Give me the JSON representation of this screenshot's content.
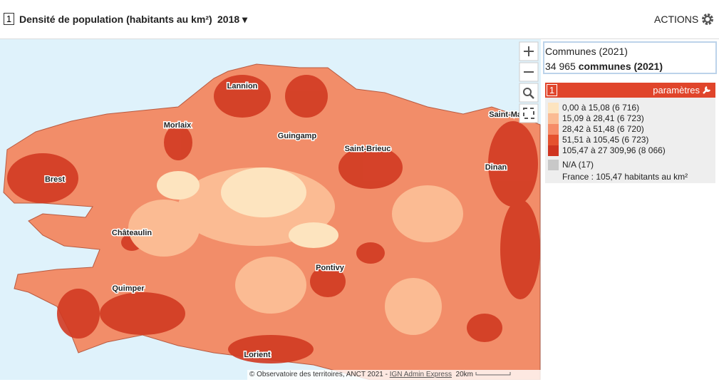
{
  "header": {
    "number": "1",
    "title": "Densité de population (habitants au km²)",
    "year": "2018",
    "actions": "ACTIONS"
  },
  "map": {
    "cities": [
      "Lannion",
      "Morlaix",
      "Guingamp",
      "Saint-Malo",
      "Saint-Brieuc",
      "Brest",
      "Dinan",
      "Châteaulin",
      "Pontivy",
      "Quimper",
      "Lorient"
    ],
    "attribution": "© Observatoire des territoires, ANCT 2021 - ",
    "attribution_link": "IGN Admin Express",
    "scale": "20km"
  },
  "panel": {
    "title": "Communes (2021)",
    "count": "34 965",
    "count_label": "communes (2021)"
  },
  "legend": {
    "number": "1",
    "settings": "paramètres",
    "classes": [
      {
        "label": "0,00 à 15,08 (6 716)",
        "color": "#fde4bf"
      },
      {
        "label": "15,09 à 28,41 (6 723)",
        "color": "#fbbb93"
      },
      {
        "label": "28,42 à 51,48 (6 720)",
        "color": "#f68c68"
      },
      {
        "label": "51,51 à 105,45 (6 723)",
        "color": "#e5522f"
      },
      {
        "label": "105,47 à 27 309,96 (8 066)",
        "color": "#cf3420"
      }
    ],
    "na": {
      "label": "N/A (17)",
      "color": "#c8c8c8"
    },
    "note": "France : 105,47 habitants au km²"
  }
}
